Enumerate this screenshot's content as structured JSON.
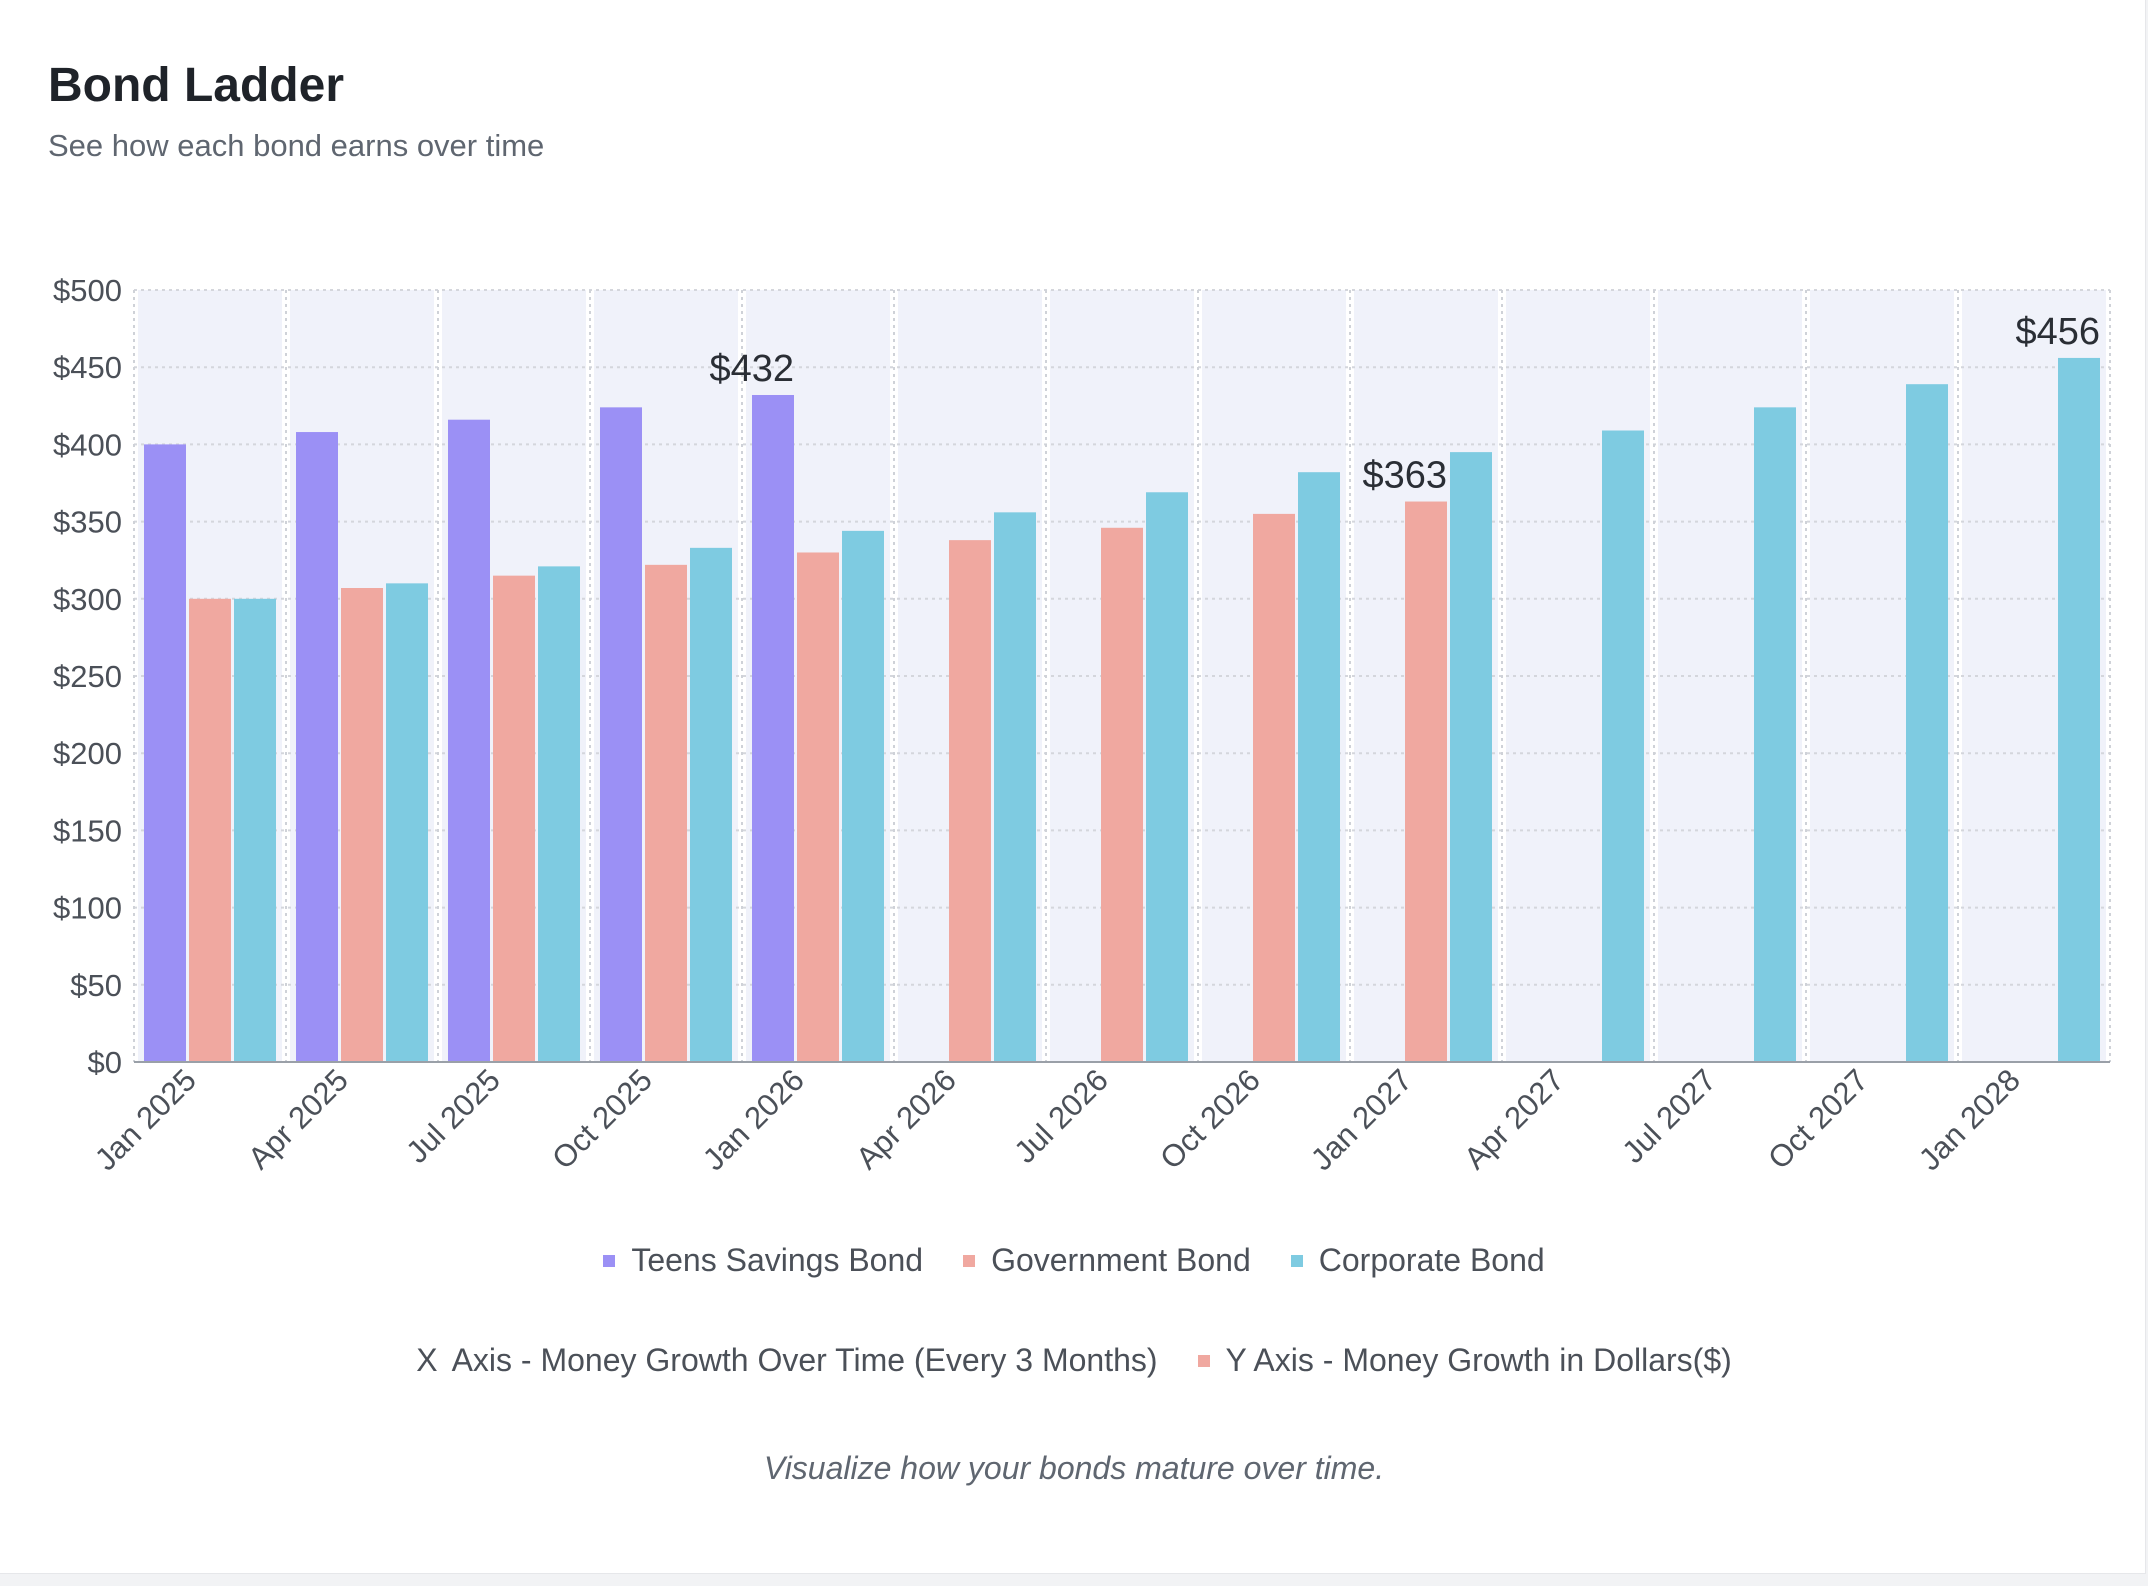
{
  "header": {
    "title": "Bond Ladder",
    "subtitle": "See how each bond earns over time"
  },
  "chart_data": {
    "type": "bar",
    "title": "Bond Ladder",
    "xlabel": "Money Growth Over Time (Every 3 Months)",
    "ylabel": "Money Growth in Dollars($)",
    "ylim": [
      0,
      500
    ],
    "yticks": [
      "$0",
      "$50",
      "$100",
      "$150",
      "$200",
      "$250",
      "$300",
      "$350",
      "$400",
      "$450",
      "$500"
    ],
    "grid": true,
    "categories": [
      "Jan 2025",
      "Apr 2025",
      "Jul 2025",
      "Oct 2025",
      "Jan 2026",
      "Apr 2026",
      "Jul 2026",
      "Oct 2026",
      "Jan 2027",
      "Apr 2027",
      "Jul 2027",
      "Oct 2027",
      "Jan 2028"
    ],
    "series": [
      {
        "name": "Teens Savings Bond",
        "color": "#9b90f5",
        "values": [
          400,
          408,
          416,
          424,
          432,
          null,
          null,
          null,
          null,
          null,
          null,
          null,
          null
        ]
      },
      {
        "name": "Government Bond",
        "color": "#f0a8a0",
        "values": [
          300,
          307,
          315,
          322,
          330,
          338,
          346,
          355,
          363,
          null,
          null,
          null,
          null
        ]
      },
      {
        "name": "Corporate Bond",
        "color": "#7ecbe1",
        "values": [
          300,
          310,
          321,
          333,
          344,
          356,
          369,
          382,
          395,
          409,
          424,
          439,
          456
        ]
      }
    ],
    "annotations": [
      {
        "series": 0,
        "category": 4,
        "text": "$432"
      },
      {
        "series": 1,
        "category": 8,
        "text": "$363"
      },
      {
        "series": 2,
        "category": 12,
        "text": "$456"
      }
    ],
    "legend_position": "bottom-center"
  },
  "legend": {
    "items": [
      {
        "label": "Teens Savings Bond",
        "color": "#9b90f5"
      },
      {
        "label": "Government Bond",
        "color": "#f0a8a0"
      },
      {
        "label": "Corporate Bond",
        "color": "#7ecbe1"
      }
    ]
  },
  "axis_notes": {
    "x_marker": "X",
    "x_text": "Axis - Money Growth Over Time (Every 3 Months)",
    "y_text": "Y Axis - Money Growth in Dollars($)",
    "y_color": "#f0a8a0"
  },
  "footer": {
    "text": "Visualize how your bonds mature over time."
  }
}
